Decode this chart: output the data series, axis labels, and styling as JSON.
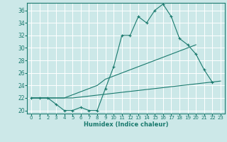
{
  "title": "",
  "xlabel": "Humidex (Indice chaleur)",
  "bg_color": "#cce8e8",
  "grid_color": "#ffffff",
  "line_color": "#1a7a6e",
  "xlim": [
    -0.5,
    23.5
  ],
  "ylim": [
    19.5,
    37.2
  ],
  "xticks": [
    0,
    1,
    2,
    3,
    4,
    5,
    6,
    7,
    8,
    9,
    10,
    11,
    12,
    13,
    14,
    15,
    16,
    17,
    18,
    19,
    20,
    21,
    22,
    23
  ],
  "yticks": [
    20,
    22,
    24,
    26,
    28,
    30,
    32,
    34,
    36
  ],
  "line1_x": [
    0,
    1,
    2,
    3,
    4,
    5,
    6,
    7,
    8,
    9,
    10,
    11,
    12,
    13,
    14,
    15,
    16,
    17,
    18,
    19,
    20,
    21,
    22
  ],
  "line1_y": [
    22,
    22,
    22,
    21,
    20,
    20,
    20.5,
    20,
    20,
    23.5,
    27,
    32,
    32,
    35,
    34,
    36,
    37,
    35,
    31.5,
    30.5,
    29,
    26.5,
    24.5
  ],
  "line2_x": [
    0,
    1,
    2,
    3,
    4,
    5,
    6,
    7,
    8,
    9,
    10,
    11,
    12,
    13,
    14,
    15,
    16,
    17,
    18,
    19,
    20
  ],
  "line2_y": [
    22,
    22,
    22,
    22,
    22,
    22.5,
    23,
    23.5,
    24,
    25,
    25.5,
    26,
    26.5,
    27,
    27.5,
    28,
    28.5,
    29,
    29.5,
    30,
    30.5
  ],
  "line3_x": [
    0,
    1,
    2,
    3,
    4,
    5,
    6,
    7,
    8,
    9,
    10,
    11,
    12,
    13,
    14,
    15,
    16,
    17,
    18,
    19,
    20,
    21,
    22,
    23
  ],
  "line3_y": [
    22,
    22,
    22,
    22,
    22,
    22,
    22.15,
    22.3,
    22.45,
    22.6,
    22.75,
    22.9,
    23.05,
    23.2,
    23.35,
    23.5,
    23.65,
    23.8,
    23.95,
    24.1,
    24.25,
    24.4,
    24.55,
    24.7
  ]
}
